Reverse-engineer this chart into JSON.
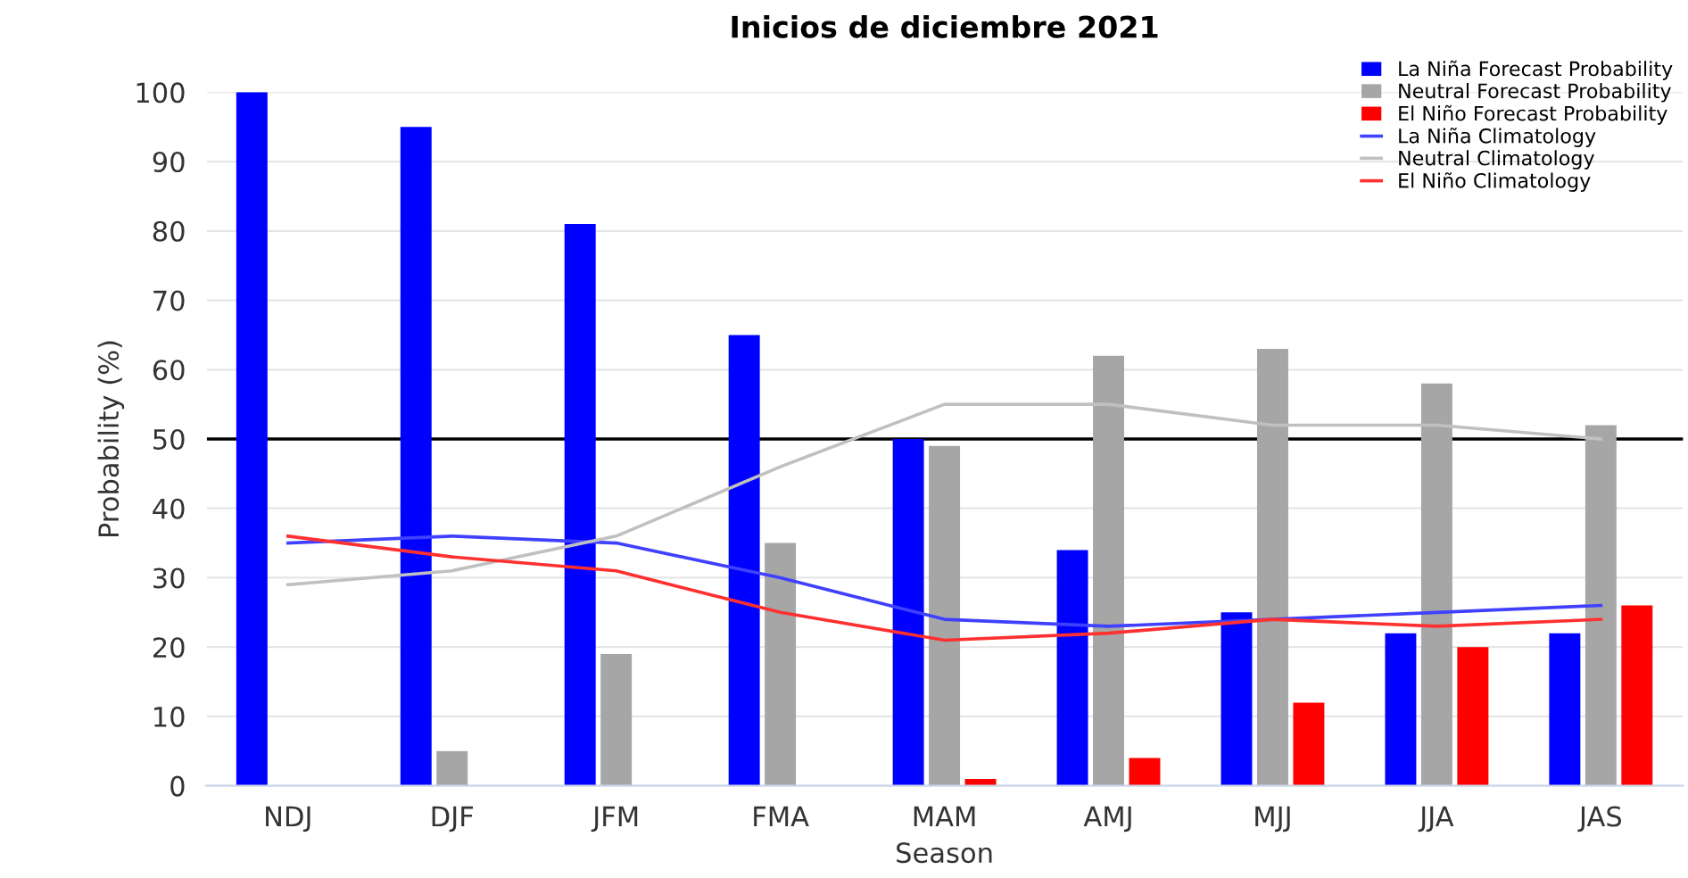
{
  "chart_data": {
    "type": "bar",
    "title": "Inicios de diciembre 2021",
    "xlabel": "Season",
    "ylabel": "Probability (%)",
    "categories": [
      "NDJ",
      "DJF",
      "JFM",
      "FMA",
      "MAM",
      "AMJ",
      "MJJ",
      "JJA",
      "JAS"
    ],
    "series": [
      {
        "name": "La Niña Forecast Probability",
        "color": "#0000ff",
        "values": [
          100,
          95,
          81,
          65,
          50,
          34,
          25,
          22,
          22
        ]
      },
      {
        "name": "Neutral Forecast Probability",
        "color": "#a6a6a6",
        "values": [
          0,
          5,
          19,
          35,
          49,
          62,
          63,
          58,
          52
        ]
      },
      {
        "name": "El Niño Forecast Probability",
        "color": "#ff0000",
        "values": [
          0,
          0,
          0,
          0,
          1,
          4,
          12,
          20,
          26
        ]
      },
      {
        "name": "La Niña Climatology",
        "type": "line",
        "color": "#4040ff",
        "values": [
          35,
          36,
          35,
          30,
          24,
          23,
          24,
          25,
          26
        ]
      },
      {
        "name": "Neutral Climatology",
        "type": "line",
        "color": "#c0c0c0",
        "values": [
          29,
          31,
          36,
          46,
          55,
          55,
          52,
          52,
          50
        ]
      },
      {
        "name": "El Niño Climatology",
        "type": "line",
        "color": "#ff3030",
        "values": [
          36,
          33,
          31,
          25,
          21,
          22,
          24,
          23,
          24
        ]
      }
    ],
    "ylim": [
      0,
      100
    ],
    "yticks": [
      0,
      10,
      20,
      30,
      40,
      50,
      60,
      70,
      80,
      90,
      100
    ],
    "ref_lines": [
      {
        "axis": "y",
        "value": 50,
        "color": "#000000"
      }
    ],
    "grid": "y",
    "legend": "top right",
    "marker": "none",
    "line_style": "solid"
  }
}
